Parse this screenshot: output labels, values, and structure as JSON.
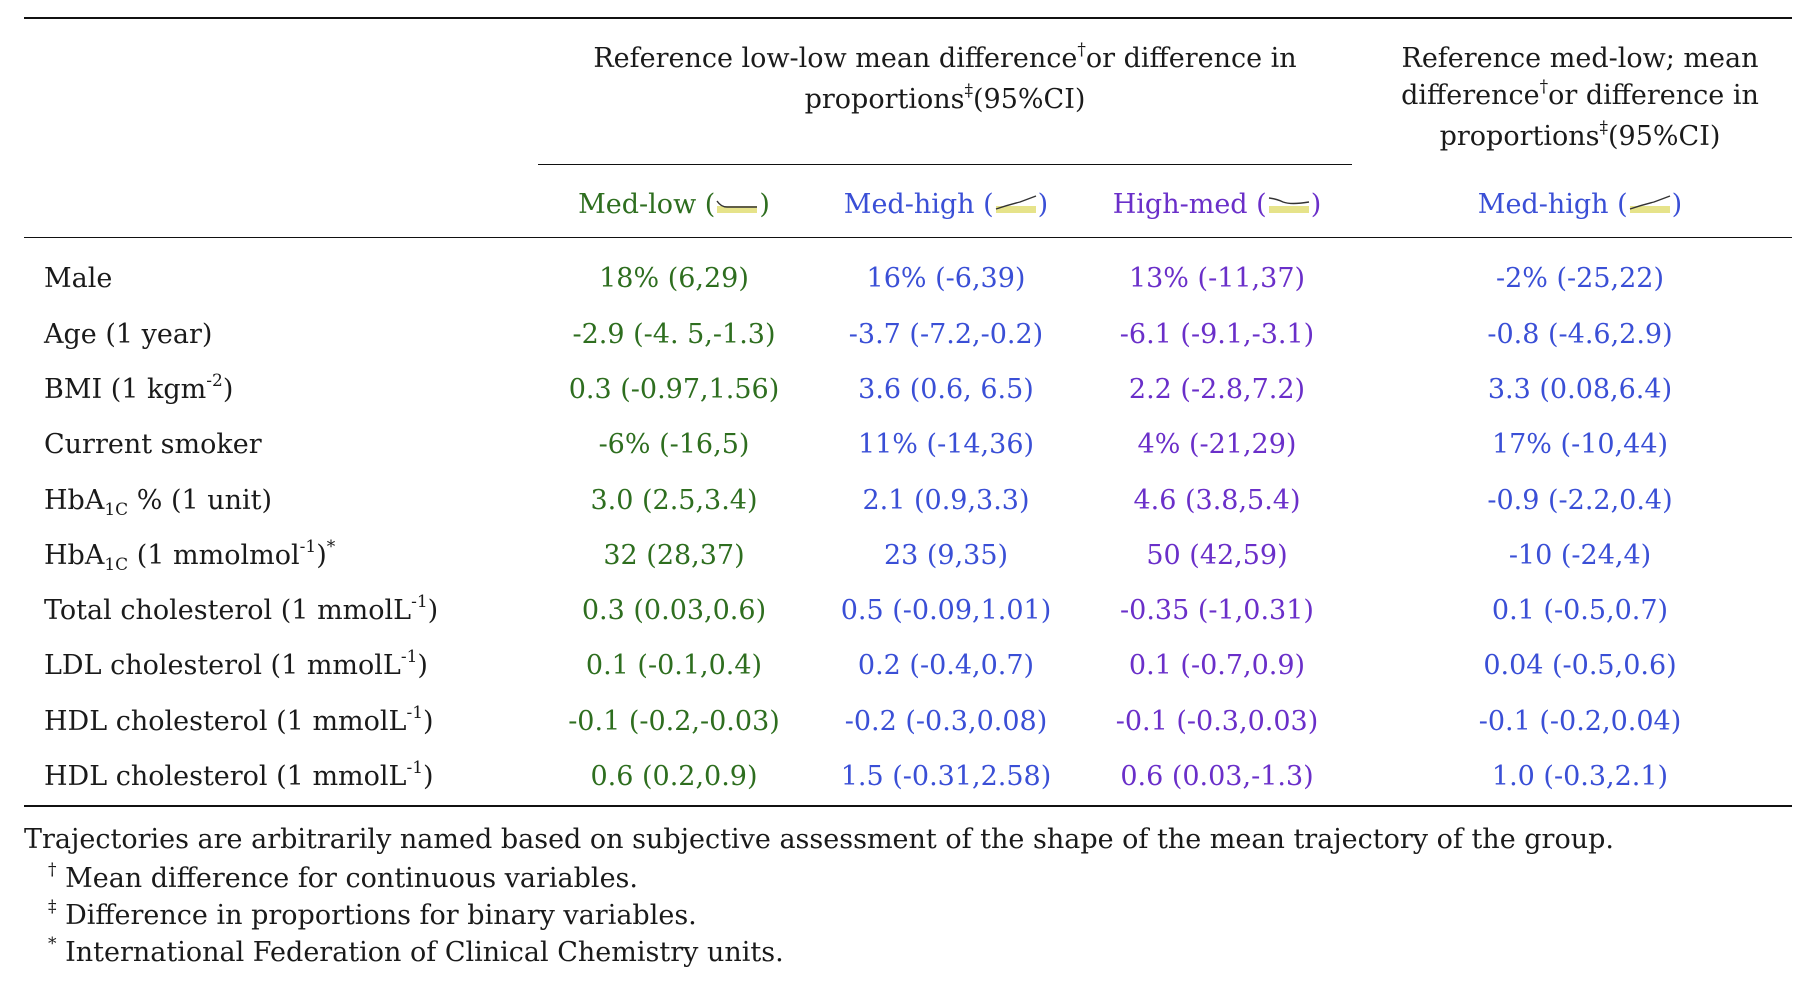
{
  "header": {
    "group1_line1": "Reference low-low mean difference",
    "group1_mid": "or difference in",
    "group1_line2": "proportions",
    "group1_tail": "(95%CI)",
    "group2_line1": "Reference med-low; mean",
    "group2_line2": "difference",
    "group2_mid": "or difference in",
    "group2_line3": "proportions",
    "group2_tail": "(95%CI)",
    "dagger": "†",
    "ddagger": "‡"
  },
  "columns": [
    {
      "label": "Med-low",
      "color": "#2e6e1f",
      "icon": "flat-low-trajectory-icon"
    },
    {
      "label": "Med-high",
      "color": "#3a4fd6",
      "icon": "rising-trajectory-icon"
    },
    {
      "label": "High-med",
      "color": "#6a2fc9",
      "icon": "falling-trajectory-icon"
    },
    {
      "label": "Med-high",
      "color": "#3a4fd6",
      "icon": "rising-trajectory-icon"
    }
  ],
  "rows": [
    {
      "label": "Male",
      "values": [
        "18% (6,29)",
        "16% (-6,39)",
        "13% (-11,37)",
        "-2% (-25,22)"
      ]
    },
    {
      "label": "Age (1 year)",
      "values": [
        "-2.9 (-4. 5,-1.3)",
        "-3.7 (-7.2,-0.2)",
        "-6.1 (-9.1,-3.1)",
        "-0.8 (-4.6,2.9)"
      ]
    },
    {
      "label_main": "BMI (1 kgm",
      "label_sup": "-2",
      "label_end": ")",
      "values": [
        "0.3 (-0.97,1.56)",
        "3.6 (0.6, 6.5)",
        "2.2 (-2.8,7.2)",
        "3.3 (0.08,6.4)"
      ]
    },
    {
      "label": "Current smoker",
      "values": [
        "-6% (-16,5)",
        "11% (-14,36)",
        "4% (-21,29)",
        "17% (-10,44)"
      ]
    },
    {
      "label_main": "HbA",
      "label_sub": "1C",
      "label_end": " % (1 unit)",
      "values": [
        "3.0 (2.5,3.4)",
        "2.1 (0.9,3.3)",
        "4.6 (3.8,5.4)",
        "-0.9 (-2.2,0.4)"
      ]
    },
    {
      "label_main": "HbA",
      "label_sub": "1C",
      "label_mid": " (1 mmolmol",
      "label_sup": "-1",
      "label_end": ")",
      "label_sup2": "*",
      "values": [
        "32 (28,37)",
        "23 (9,35)",
        "50 (42,59)",
        "-10 (-24,4)"
      ]
    },
    {
      "label_main": "Total cholesterol (1 mmolL",
      "label_sup": "-1",
      "label_end": ")",
      "values": [
        "0.3 (0.03,0.6)",
        "0.5 (-0.09,1.01)",
        "-0.35 (-1,0.31)",
        "0.1 (-0.5,0.7)"
      ]
    },
    {
      "label_main": "LDL cholesterol (1 mmolL",
      "label_sup": "-1",
      "label_end": ")",
      "values": [
        "0.1 (-0.1,0.4)",
        "0.2 (-0.4,0.7)",
        "0.1 (-0.7,0.9)",
        "0.04 (-0.5,0.6)"
      ]
    },
    {
      "label_main": "HDL cholesterol (1 mmolL",
      "label_sup": "-1",
      "label_end": ")",
      "values": [
        "-0.1 (-0.2,-0.03)",
        "-0.2 (-0.3,0.08)",
        "-0.1 (-0.3,0.03)",
        "-0.1 (-0.2,0.04)"
      ]
    },
    {
      "label_main": "HDL cholesterol (1 mmolL",
      "label_sup": "-1",
      "label_end": ")",
      "values": [
        "0.6 (0.2,0.9)",
        "1.5 (-0.31,2.58)",
        "0.6 (0.03,-1.3)",
        "1.0 (-0.3,2.1)"
      ]
    }
  ],
  "footnotes": {
    "note": "Trajectories are arbitrarily named based on subjective assessment of the shape of the mean trajectory of the group.",
    "dagger_mark": "†",
    "dagger_text": " Mean difference for continuous variables.",
    "ddagger_mark": "‡",
    "ddagger_text": " Difference in proportions for binary variables.",
    "star_mark": "*",
    "star_text": " International Federation of Clinical Chemistry units."
  }
}
